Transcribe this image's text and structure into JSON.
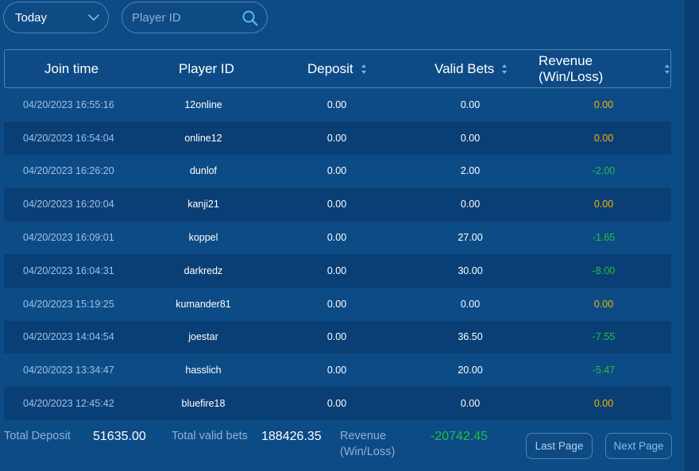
{
  "filters": {
    "date_range": "Today",
    "player_search_placeholder": "Player ID"
  },
  "table": {
    "headers": {
      "join_time": "Join time",
      "player_id": "Player ID",
      "deposit": "Deposit",
      "valid_bets": "Valid Bets",
      "revenue": "Revenue (Win/Loss)"
    },
    "rows": [
      {
        "join_time": "04/20/2023 16:55:16",
        "player_id": "12online",
        "deposit": "0.00",
        "valid_bets": "0.00",
        "revenue": "0.00"
      },
      {
        "join_time": "04/20/2023 16:54:04",
        "player_id": "online12",
        "deposit": "0.00",
        "valid_bets": "0.00",
        "revenue": "0.00"
      },
      {
        "join_time": "04/20/2023 16:26:20",
        "player_id": "dunlof",
        "deposit": "0.00",
        "valid_bets": "2.00",
        "revenue": "-2.00"
      },
      {
        "join_time": "04/20/2023 16:20:04",
        "player_id": "kanji21",
        "deposit": "0.00",
        "valid_bets": "0.00",
        "revenue": "0.00"
      },
      {
        "join_time": "04/20/2023 16:09:01",
        "player_id": "koppel",
        "deposit": "0.00",
        "valid_bets": "27.00",
        "revenue": "-1.65"
      },
      {
        "join_time": "04/20/2023 16:04:31",
        "player_id": "darkredz",
        "deposit": "0.00",
        "valid_bets": "30.00",
        "revenue": "-8.00"
      },
      {
        "join_time": "04/20/2023 15:19:25",
        "player_id": "kumander81",
        "deposit": "0.00",
        "valid_bets": "0.00",
        "revenue": "0.00"
      },
      {
        "join_time": "04/20/2023 14:04:54",
        "player_id": "joestar",
        "deposit": "0.00",
        "valid_bets": "36.50",
        "revenue": "-7.55"
      },
      {
        "join_time": "04/20/2023 13:34:47",
        "player_id": "hasslich",
        "deposit": "0.00",
        "valid_bets": "20.00",
        "revenue": "-5.47"
      },
      {
        "join_time": "04/20/2023 12:45:42",
        "player_id": "bluefire18",
        "deposit": "0.00",
        "valid_bets": "0.00",
        "revenue": "0.00"
      }
    ]
  },
  "totals": {
    "deposit_label": "Total Deposit",
    "deposit_value": "51635.00",
    "bets_label": "Total valid bets",
    "bets_value": "188426.35",
    "revenue_label_line1": "Revenue",
    "revenue_label_line2": "(Win/Loss)",
    "revenue_value": "-20742.45"
  },
  "pagination": {
    "last_label": "Last Page",
    "next_label": "Next Page"
  },
  "colors": {
    "background": "#0d4b86",
    "revenue_zero": "#f5b400",
    "revenue_negative": "#20c040"
  },
  "icons": [
    "chevron-down-icon",
    "search-icon",
    "sort-icon"
  ]
}
